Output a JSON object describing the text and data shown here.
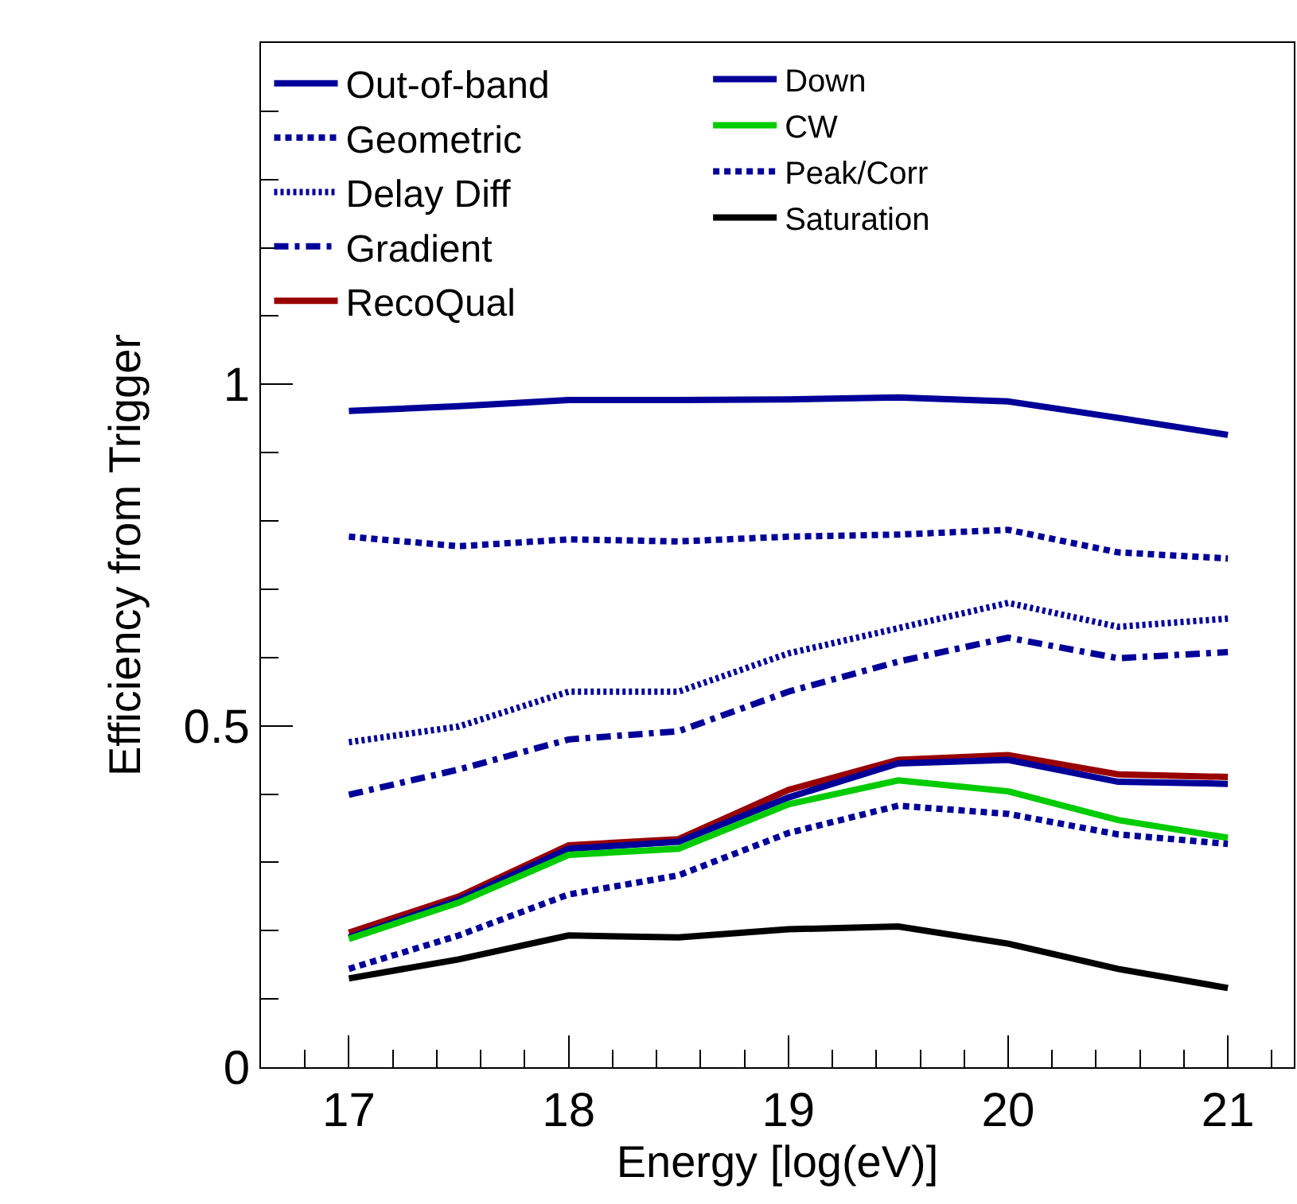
{
  "chart_data": {
    "type": "line",
    "xlabel": "Energy [log(eV)]",
    "ylabel": "Efficiency from Trigger",
    "x": [
      17,
      17.5,
      18,
      18.5,
      19,
      19.5,
      20,
      20.5,
      21
    ],
    "xlim": [
      16.6,
      21.3
    ],
    "ylim": [
      0,
      1.5
    ],
    "xticks": [
      {
        "value": 16.8,
        "label": null
      },
      17,
      {
        "value": 17.2,
        "label": null
      },
      {
        "value": 17.4,
        "label": null
      },
      {
        "value": 17.6,
        "label": null
      },
      {
        "value": 17.8,
        "label": null
      },
      18,
      {
        "value": 18.2,
        "label": null
      },
      {
        "value": 18.4,
        "label": null
      },
      {
        "value": 18.6,
        "label": null
      },
      {
        "value": 18.8,
        "label": null
      },
      19,
      {
        "value": 19.2,
        "label": null
      },
      {
        "value": 19.4,
        "label": null
      },
      {
        "value": 19.6,
        "label": null
      },
      {
        "value": 19.8,
        "label": null
      },
      20,
      {
        "value": 20.2,
        "label": null
      },
      {
        "value": 20.4,
        "label": null
      },
      {
        "value": 20.6,
        "label": null
      },
      {
        "value": 20.8,
        "label": null
      },
      21,
      {
        "value": 21.2,
        "label": null
      }
    ],
    "yticks": [
      0,
      {
        "value": 0.1,
        "label": null
      },
      {
        "value": 0.2,
        "label": null
      },
      {
        "value": 0.3,
        "label": null
      },
      {
        "value": 0.4,
        "label": null
      },
      0.5,
      {
        "value": 0.6,
        "label": null
      },
      {
        "value": 0.7,
        "label": null
      },
      {
        "value": 0.8,
        "label": null
      },
      {
        "value": 0.9,
        "label": null
      },
      1,
      {
        "value": 1.1,
        "label": null
      },
      {
        "value": 1.2,
        "label": null
      },
      {
        "value": 1.3,
        "label": null
      },
      {
        "value": 1.4,
        "label": null
      }
    ],
    "legend": "top left",
    "marker": "none",
    "series": [
      {
        "name": "Out-of-band",
        "color": "#000099",
        "line_style": "solid",
        "values": [
          0.961,
          0.968,
          0.977,
          0.977,
          0.978,
          0.981,
          0.975,
          0.951,
          0.926
        ]
      },
      {
        "name": "Geometric",
        "color": "#000099",
        "line_style": "dotted",
        "values": [
          0.777,
          0.763,
          0.773,
          0.77,
          0.777,
          0.78,
          0.787,
          0.754,
          0.745
        ]
      },
      {
        "name": "Delay Diff",
        "color": "#000099",
        "line_style": "densely dotted",
        "values": [
          0.476,
          0.499,
          0.55,
          0.55,
          0.606,
          0.643,
          0.68,
          0.645,
          0.657
        ]
      },
      {
        "name": "Gradient",
        "color": "#000099",
        "line_style": "dashdot",
        "values": [
          0.399,
          0.436,
          0.48,
          0.492,
          0.55,
          0.594,
          0.629,
          0.599,
          0.608
        ]
      },
      {
        "name": "RecoQual",
        "color": "#990000",
        "line_style": "solid",
        "values": [
          0.197,
          0.25,
          0.325,
          0.334,
          0.406,
          0.45,
          0.457,
          0.429,
          0.425
        ]
      },
      {
        "name": "Down",
        "color": "#000099",
        "line_style": "solid",
        "values": [
          0.19,
          0.245,
          0.32,
          0.33,
          0.395,
          0.445,
          0.45,
          0.418,
          0.415
        ]
      },
      {
        "name": "CW",
        "color": "#00cc00",
        "line_style": "solid",
        "values": [
          0.188,
          0.241,
          0.311,
          0.32,
          0.385,
          0.42,
          0.404,
          0.362,
          0.336
        ]
      },
      {
        "name": "Peak/Corr",
        "color": "#000099",
        "line_style": "dotted",
        "values": [
          0.144,
          0.193,
          0.253,
          0.281,
          0.343,
          0.383,
          0.371,
          0.341,
          0.327
        ]
      },
      {
        "name": "Saturation",
        "color": "#000000",
        "line_style": "solid",
        "values": [
          0.13,
          0.158,
          0.193,
          0.19,
          0.202,
          0.206,
          0.181,
          0.144,
          0.116
        ]
      }
    ]
  }
}
